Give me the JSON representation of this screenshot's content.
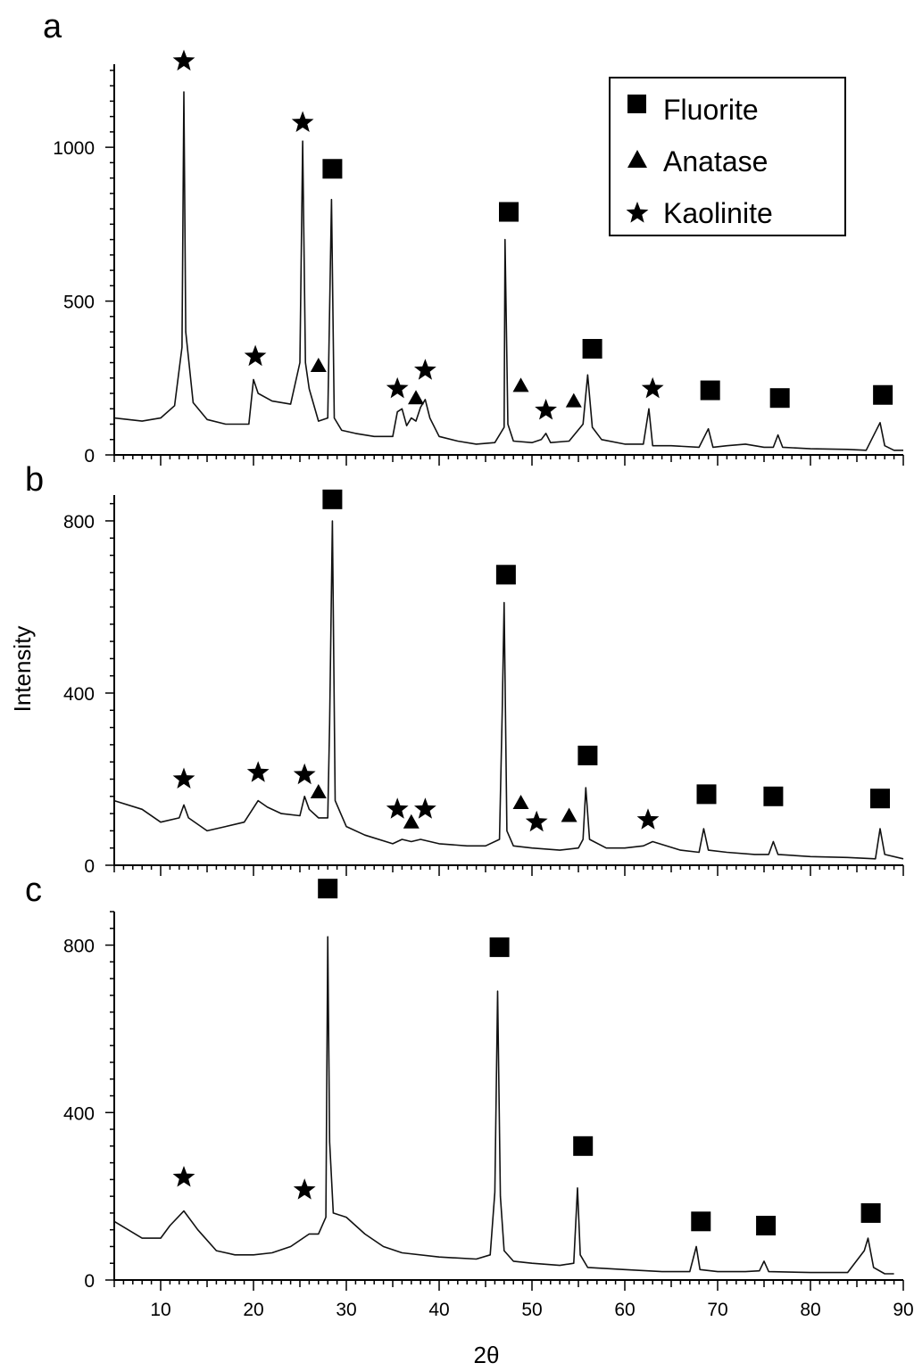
{
  "chart_data": {
    "type": "line",
    "xlabel": "2θ",
    "ylabel": "Intensity",
    "xlim": [
      5,
      90
    ],
    "x_ticks": [
      "10",
      "20",
      "30",
      "40",
      "50",
      "60",
      "70",
      "80",
      "90"
    ],
    "legend": {
      "position": "top-right",
      "entries": [
        {
          "marker": "square",
          "label": "Fluorite"
        },
        {
          "marker": "triangle",
          "label": "Anatase"
        },
        {
          "marker": "star",
          "label": "Kaolinite"
        }
      ]
    },
    "panels": [
      {
        "label": "a",
        "ylim": [
          0,
          1270
        ],
        "y_ticks": [
          0,
          500,
          1000
        ],
        "series": [
          {
            "x": [
              5,
              8,
              10,
              11.5,
              12.3,
              12.5,
              12.7,
              13.5,
              15,
              17,
              19.5,
              20,
              20.5,
              22,
              24,
              25,
              25.3,
              25.6,
              26,
              27,
              28,
              28.4,
              28.7,
              29.5,
              31,
              33,
              35,
              35.5,
              36,
              36.5,
              37,
              37.5,
              38,
              38.5,
              39,
              40,
              42,
              44,
              46,
              47,
              47.1,
              47.4,
              48,
              50,
              51,
              51.5,
              52,
              54,
              55.5,
              56,
              56.5,
              57.5,
              60,
              62,
              62.6,
              63,
              65,
              68,
              69,
              69.5,
              71,
              73,
              75,
              76,
              76.5,
              77,
              80,
              84,
              86,
              87.5,
              88,
              89,
              90
            ],
            "y": [
              120,
              110,
              120,
              160,
              350,
              1180,
              400,
              170,
              115,
              100,
              100,
              245,
              200,
              175,
              165,
              300,
              1020,
              300,
              215,
              110,
              120,
              830,
              120,
              80,
              70,
              60,
              60,
              140,
              150,
              95,
              120,
              110,
              155,
              180,
              120,
              60,
              45,
              35,
              40,
              90,
              700,
              100,
              45,
              40,
              50,
              70,
              40,
              45,
              100,
              260,
              90,
              50,
              35,
              35,
              150,
              30,
              30,
              25,
              85,
              25,
              30,
              35,
              25,
              25,
              65,
              25,
              20,
              18,
              15,
              105,
              30,
              15,
              15
            ]
          }
        ],
        "markers": [
          {
            "type": "star",
            "x": 12.5,
            "y": 1280
          },
          {
            "type": "star",
            "x": 20.2,
            "y": 320
          },
          {
            "type": "star",
            "x": 25.3,
            "y": 1080
          },
          {
            "type": "triangle",
            "x": 27.0,
            "y": 290
          },
          {
            "type": "square",
            "x": 28.5,
            "y": 930
          },
          {
            "type": "star",
            "x": 35.5,
            "y": 215
          },
          {
            "type": "triangle",
            "x": 37.5,
            "y": 185
          },
          {
            "type": "star",
            "x": 38.5,
            "y": 275
          },
          {
            "type": "square",
            "x": 47.5,
            "y": 790
          },
          {
            "type": "triangle",
            "x": 48.8,
            "y": 225
          },
          {
            "type": "star",
            "x": 51.5,
            "y": 145
          },
          {
            "type": "triangle",
            "x": 54.5,
            "y": 175
          },
          {
            "type": "square",
            "x": 56.5,
            "y": 345
          },
          {
            "type": "star",
            "x": 63.0,
            "y": 215
          },
          {
            "type": "square",
            "x": 69.2,
            "y": 210
          },
          {
            "type": "square",
            "x": 76.7,
            "y": 185
          },
          {
            "type": "square",
            "x": 87.8,
            "y": 195
          }
        ]
      },
      {
        "label": "b",
        "ylim": [
          0,
          860
        ],
        "y_ticks": [
          0,
          400,
          800
        ],
        "series": [
          {
            "x": [
              5,
              8,
              10,
              12,
              12.5,
              13,
              15,
              17,
              19,
              20.5,
              21.5,
              23,
              25,
              25.5,
              26,
              27,
              28,
              28.2,
              28.5,
              28.8,
              30,
              32,
              35,
              36,
              37,
              38,
              40,
              43,
              45,
              46.5,
              46.8,
              47,
              47.3,
              48,
              50,
              53,
              55,
              55.5,
              55.8,
              56.2,
              58,
              60,
              62,
              63,
              66,
              68,
              68.5,
              69,
              71,
              74,
              75.5,
              76,
              76.5,
              80,
              84,
              87,
              87.5,
              88,
              90
            ],
            "y": [
              150,
              130,
              100,
              110,
              140,
              110,
              80,
              90,
              100,
              150,
              135,
              120,
              115,
              160,
              130,
              110,
              110,
              330,
              800,
              150,
              90,
              70,
              50,
              60,
              55,
              60,
              50,
              45,
              45,
              60,
              360,
              610,
              80,
              45,
              40,
              35,
              40,
              60,
              180,
              60,
              40,
              40,
              45,
              55,
              35,
              30,
              85,
              35,
              30,
              25,
              25,
              55,
              25,
              20,
              18,
              15,
              85,
              25,
              15
            ]
          }
        ],
        "markers": [
          {
            "type": "star",
            "x": 12.5,
            "y": 200
          },
          {
            "type": "star",
            "x": 20.5,
            "y": 215
          },
          {
            "type": "star",
            "x": 25.5,
            "y": 210
          },
          {
            "type": "triangle",
            "x": 27.0,
            "y": 170
          },
          {
            "type": "square",
            "x": 28.5,
            "y": 850
          },
          {
            "type": "star",
            "x": 35.5,
            "y": 130
          },
          {
            "type": "triangle",
            "x": 37.0,
            "y": 100
          },
          {
            "type": "star",
            "x": 38.5,
            "y": 130
          },
          {
            "type": "square",
            "x": 47.2,
            "y": 675
          },
          {
            "type": "triangle",
            "x": 48.8,
            "y": 145
          },
          {
            "type": "star",
            "x": 50.5,
            "y": 100
          },
          {
            "type": "triangle",
            "x": 54.0,
            "y": 115
          },
          {
            "type": "square",
            "x": 56.0,
            "y": 255
          },
          {
            "type": "star",
            "x": 62.5,
            "y": 105
          },
          {
            "type": "square",
            "x": 68.8,
            "y": 165
          },
          {
            "type": "square",
            "x": 76.0,
            "y": 160
          },
          {
            "type": "square",
            "x": 87.5,
            "y": 155
          }
        ]
      },
      {
        "label": "c",
        "ylim": [
          0,
          880
        ],
        "y_ticks": [
          0,
          400,
          800
        ],
        "series": [
          {
            "x": [
              5,
              8,
              10,
              11,
              12.5,
              14,
              16,
              18,
              20,
              22,
              24,
              26,
              27,
              27.8,
              28,
              28.2,
              28.6,
              30,
              32,
              34,
              36,
              40,
              44,
              45.5,
              46,
              46.3,
              46.6,
              47,
              48,
              50,
              53,
              54.5,
              54.9,
              55.2,
              56,
              60,
              64,
              67,
              67.7,
              68.1,
              70,
              73,
              74.5,
              75,
              75.5,
              80,
              84,
              85.8,
              86.2,
              86.8,
              88,
              89
            ],
            "y": [
              140,
              100,
              100,
              130,
              165,
              120,
              70,
              60,
              60,
              65,
              80,
              110,
              110,
              150,
              820,
              330,
              160,
              150,
              110,
              80,
              65,
              55,
              50,
              60,
              210,
              690,
              200,
              70,
              45,
              40,
              35,
              40,
              220,
              60,
              30,
              25,
              20,
              20,
              80,
              25,
              20,
              20,
              22,
              45,
              20,
              18,
              18,
              70,
              100,
              30,
              15,
              15
            ]
          }
        ],
        "markers": [
          {
            "type": "star",
            "x": 12.5,
            "y": 245
          },
          {
            "type": "star",
            "x": 25.5,
            "y": 215
          },
          {
            "type": "square",
            "x": 28.0,
            "y": 935
          },
          {
            "type": "square",
            "x": 46.5,
            "y": 795
          },
          {
            "type": "square",
            "x": 55.5,
            "y": 320
          },
          {
            "type": "square",
            "x": 68.2,
            "y": 140
          },
          {
            "type": "square",
            "x": 75.2,
            "y": 130
          },
          {
            "type": "square",
            "x": 86.5,
            "y": 160
          }
        ]
      }
    ]
  }
}
